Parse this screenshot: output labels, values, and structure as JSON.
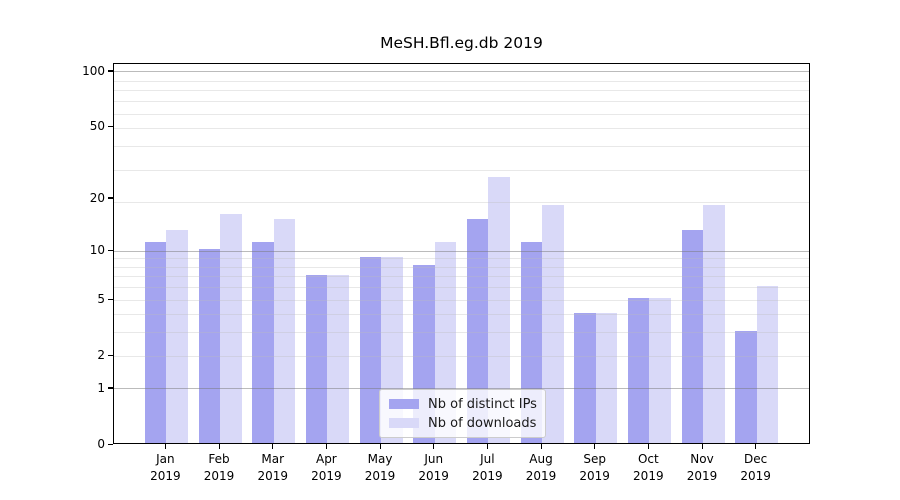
{
  "title": "MeSH.Bfl.eg.db 2019",
  "chart_data": {
    "type": "bar",
    "title": "MeSH.Bfl.eg.db 2019",
    "categories": [
      "Jan 2019",
      "Feb 2019",
      "Mar 2019",
      "Apr 2019",
      "May 2019",
      "Jun 2019",
      "Jul 2019",
      "Aug 2019",
      "Sep 2019",
      "Oct 2019",
      "Nov 2019",
      "Dec 2019"
    ],
    "x_tick_months": [
      "Jan",
      "Feb",
      "Mar",
      "Apr",
      "May",
      "Jun",
      "Jul",
      "Aug",
      "Sep",
      "Oct",
      "Nov",
      "Dec"
    ],
    "x_tick_year": "2019",
    "series": [
      {
        "name": "Nb of distinct IPs",
        "color": "#a4a4f0",
        "values": [
          11,
          10,
          11,
          7,
          9,
          8,
          15,
          11,
          4,
          5,
          13,
          3
        ]
      },
      {
        "name": "Nb of downloads",
        "color": "#d9d9f8",
        "values": [
          13,
          16,
          15,
          7,
          9,
          11,
          26,
          18,
          4,
          5,
          18,
          6
        ]
      }
    ],
    "y_scale": "log(1+x)",
    "y_tick_values": [
      100,
      50,
      20,
      10,
      5,
      2,
      1,
      0
    ],
    "y_tick_labels": [
      "100",
      "50",
      "20",
      "10",
      "5",
      "2",
      "1",
      "0"
    ],
    "y_minor_gridline_values": [
      2,
      3,
      4,
      5,
      6,
      7,
      8,
      9,
      19,
      29,
      39,
      49,
      59,
      69,
      79,
      89
    ],
    "y_major_gridline_values": [
      1,
      10,
      100
    ],
    "ylim": [
      0,
      110
    ],
    "xlabel": "",
    "ylabel": "",
    "grid": true,
    "legend_position": "lower center",
    "colors": {
      "axis": "#000000",
      "background": "#ffffff",
      "minor_grid": "#ececec",
      "major_grid": "#bbbbbb"
    }
  }
}
